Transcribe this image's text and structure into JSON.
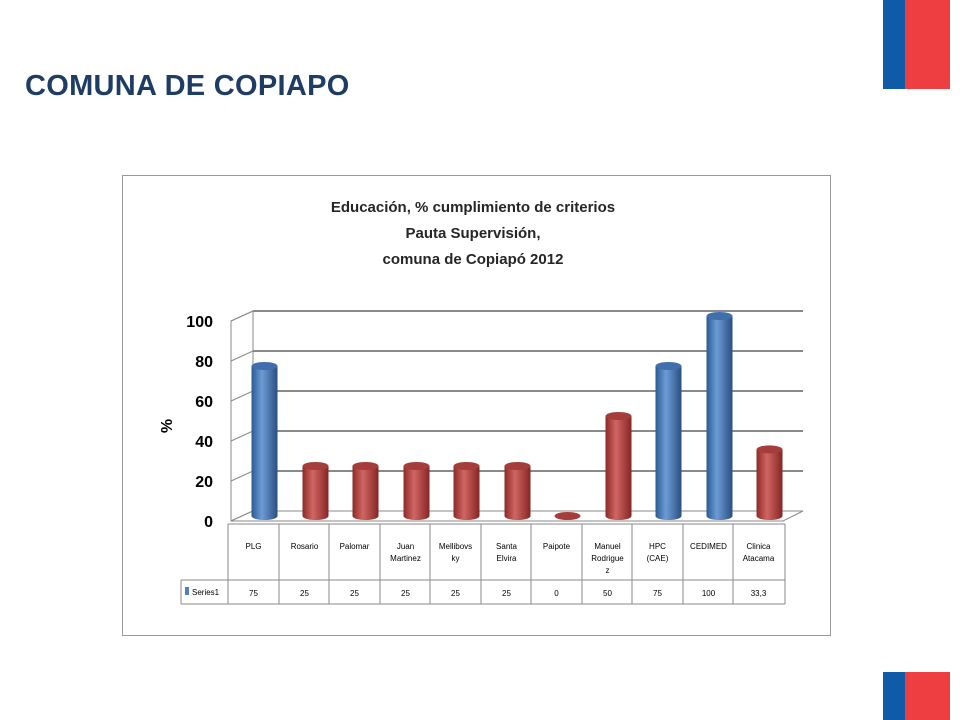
{
  "slide": {
    "title": "COMUNA DE COPIAPO"
  },
  "colors": {
    "flag_blue": "#0f5ba8",
    "flag_red": "#ef3e42",
    "bar_blue": "#4f81bd",
    "bar_red": "#c0504d",
    "title": "#1f3d64"
  },
  "chart_data": {
    "type": "bar",
    "title_lines": [
      "Educación, % cumplimiento de criterios",
      "Pauta Supervisión,",
      "comuna de Copiapó 2012"
    ],
    "ylabel": "%",
    "xlabel": "",
    "ylim": [
      0,
      100
    ],
    "yticks": [
      0,
      20,
      40,
      60,
      80,
      100
    ],
    "grid": true,
    "categories": [
      [
        "PLG"
      ],
      [
        "Rosario"
      ],
      [
        "Palomar"
      ],
      [
        "Juan",
        "Martinez"
      ],
      [
        "Mellibovs",
        "ky"
      ],
      [
        "Santa",
        "Elvira"
      ],
      [
        "Paipote"
      ],
      [
        "Manuel",
        "Rodrigue",
        "z"
      ],
      [
        "HPC",
        "(CAE)"
      ],
      [
        "CEDIMED"
      ],
      [
        "Clinica",
        "Atacama"
      ]
    ],
    "series": [
      {
        "name": "Series1",
        "values": [
          75,
          25,
          25,
          25,
          25,
          25,
          0,
          50,
          75,
          100,
          33.3
        ]
      }
    ],
    "value_labels": [
      "75",
      "25",
      "25",
      "25",
      "25",
      "25",
      "0",
      "50",
      "75",
      "100",
      "33,3"
    ],
    "point_colors": [
      "blue",
      "red",
      "red",
      "red",
      "red",
      "red",
      "red",
      "red",
      "blue",
      "blue",
      "red"
    ],
    "data_table": true
  }
}
